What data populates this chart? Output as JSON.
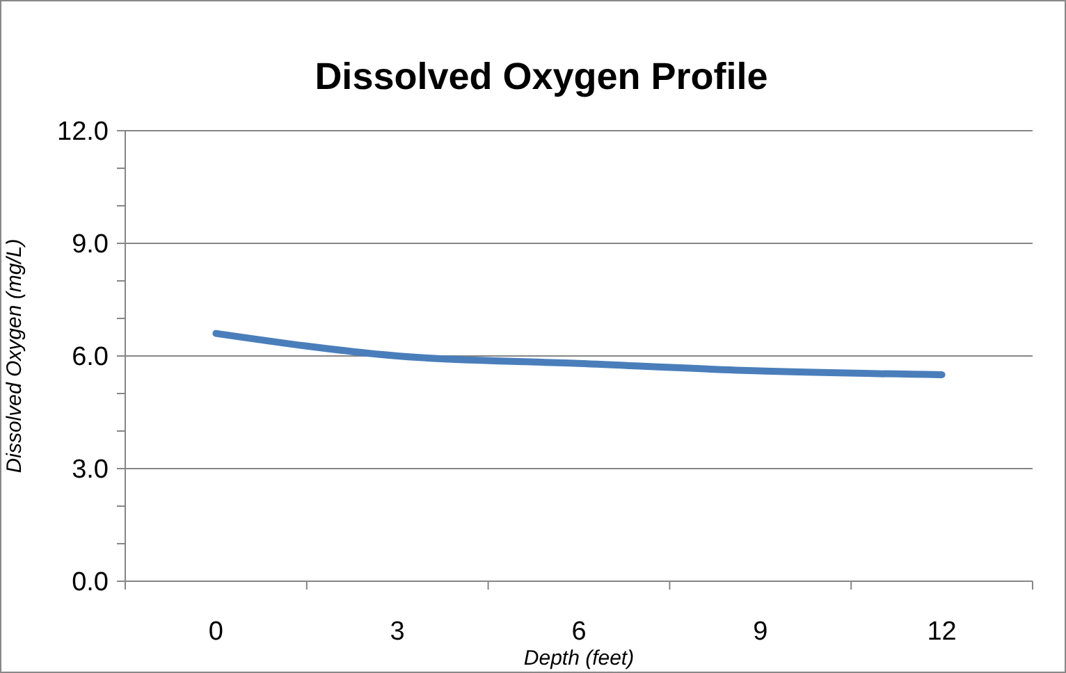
{
  "chart_data": {
    "type": "line",
    "title": "Dissolved Oxygen Profile",
    "xlabel": "Depth (feet)",
    "ylabel": "Dissolved Oxygen (mg/L)",
    "categories": [
      "0",
      "3",
      "6",
      "9",
      "12"
    ],
    "series": [
      {
        "color": "#4a7ebb",
        "values": [
          6.6,
          6.0,
          5.8,
          5.6,
          5.5
        ]
      }
    ],
    "ylim": [
      0,
      12
    ],
    "yticks": [
      {
        "value": 0,
        "label": "0.0"
      },
      {
        "value": 1,
        "label": null
      },
      {
        "value": 2,
        "label": null
      },
      {
        "value": 3,
        "label": "3.0"
      },
      {
        "value": 4,
        "label": null
      },
      {
        "value": 5,
        "label": null
      },
      {
        "value": 6,
        "label": "6.0"
      },
      {
        "value": 7,
        "label": null
      },
      {
        "value": 8,
        "label": null
      },
      {
        "value": 9,
        "label": "9.0"
      },
      {
        "value": 10,
        "label": null
      },
      {
        "value": 11,
        "label": null
      },
      {
        "value": 12,
        "label": "12.0"
      }
    ],
    "grid": "y",
    "marker": "none",
    "line_style": "solid"
  }
}
